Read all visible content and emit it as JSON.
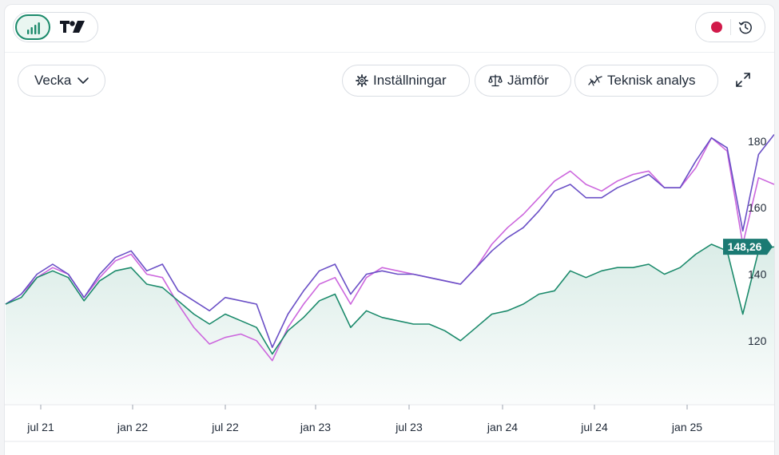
{
  "toolbar": {
    "period_label": "Vecka",
    "settings_label": "Inställningar",
    "compare_label": "Jämför",
    "technical_analysis_label": "Teknisk analys"
  },
  "icons": {
    "chart_type": "bar-chart-icon",
    "brand": "tradingview-logo-icon",
    "market_status": "market-closed-dot-icon",
    "history": "clock-history-icon",
    "period_dropdown": "chevron-down-icon",
    "settings": "gear-icon",
    "compare": "scale-icon",
    "technical_analysis": "trend-line-icon",
    "fullscreen": "expand-icon"
  },
  "colors": {
    "accent": "#1b8a6b",
    "market_status": "#d11a4a",
    "series_main": "#1b8a6b",
    "series_compare_1": "#6a4fc6",
    "series_compare_2": "#cc66dd",
    "price_tag": "#1b7a73"
  },
  "chart_data": {
    "type": "line",
    "x_ticks": [
      "jul 21",
      "jan 22",
      "jul 22",
      "jan 23",
      "jul 23",
      "jan 24",
      "jul 24",
      "jan 25"
    ],
    "y_ticks": [
      120,
      140,
      160,
      180
    ],
    "ylim": [
      101,
      191
    ],
    "last_price_label": "148,26",
    "last_price": 148.26,
    "grid": false,
    "legend": "none",
    "series": [
      {
        "color": "#1b8a6b",
        "area_fill": true,
        "points": [
          [
            "2021-05",
            131
          ],
          [
            "2021-06",
            133
          ],
          [
            "2021-07",
            139
          ],
          [
            "2021-08",
            141
          ],
          [
            "2021-09",
            139
          ],
          [
            "2021-10",
            132
          ],
          [
            "2021-11",
            138
          ],
          [
            "2021-12",
            141
          ],
          [
            "2022-01",
            142
          ],
          [
            "2022-02",
            137
          ],
          [
            "2022-03",
            136
          ],
          [
            "2022-04",
            132
          ],
          [
            "2022-05",
            128
          ],
          [
            "2022-06",
            125
          ],
          [
            "2022-07",
            128
          ],
          [
            "2022-08",
            126
          ],
          [
            "2022-09",
            124
          ],
          [
            "2022-10",
            116
          ],
          [
            "2022-11",
            123
          ],
          [
            "2022-12",
            127
          ],
          [
            "2023-01",
            132
          ],
          [
            "2023-02",
            134
          ],
          [
            "2023-03",
            124
          ],
          [
            "2023-04",
            129
          ],
          [
            "2023-05",
            127
          ],
          [
            "2023-06",
            126
          ],
          [
            "2023-07",
            125
          ],
          [
            "2023-08",
            125
          ],
          [
            "2023-09",
            123
          ],
          [
            "2023-10",
            120
          ],
          [
            "2023-11",
            124
          ],
          [
            "2023-12",
            128
          ],
          [
            "2024-01",
            129
          ],
          [
            "2024-02",
            131
          ],
          [
            "2024-03",
            134
          ],
          [
            "2024-04",
            135
          ],
          [
            "2024-05",
            141
          ],
          [
            "2024-06",
            139
          ],
          [
            "2024-07",
            141
          ],
          [
            "2024-08",
            142
          ],
          [
            "2024-09",
            142
          ],
          [
            "2024-10",
            143
          ],
          [
            "2024-11",
            140
          ],
          [
            "2024-12",
            142
          ],
          [
            "2025-01",
            146
          ],
          [
            "2025-02",
            149
          ],
          [
            "2025-03",
            147
          ],
          [
            "2025-04",
            128
          ],
          [
            "2025-05",
            147
          ],
          [
            "2025-06",
            148.26
          ]
        ]
      },
      {
        "color": "#6a4fc6",
        "area_fill": false,
        "points": [
          [
            "2021-05",
            131
          ],
          [
            "2021-06",
            134
          ],
          [
            "2021-07",
            140
          ],
          [
            "2021-08",
            143
          ],
          [
            "2021-09",
            140
          ],
          [
            "2021-10",
            133
          ],
          [
            "2021-11",
            140
          ],
          [
            "2021-12",
            145
          ],
          [
            "2022-01",
            147
          ],
          [
            "2022-02",
            141
          ],
          [
            "2022-03",
            143
          ],
          [
            "2022-04",
            135
          ],
          [
            "2022-05",
            132
          ],
          [
            "2022-06",
            129
          ],
          [
            "2022-07",
            133
          ],
          [
            "2022-08",
            132
          ],
          [
            "2022-09",
            131
          ],
          [
            "2022-10",
            118
          ],
          [
            "2022-11",
            128
          ],
          [
            "2022-12",
            135
          ],
          [
            "2023-01",
            141
          ],
          [
            "2023-02",
            143
          ],
          [
            "2023-03",
            134
          ],
          [
            "2023-04",
            140
          ],
          [
            "2023-05",
            141
          ],
          [
            "2023-06",
            140
          ],
          [
            "2023-07",
            140
          ],
          [
            "2023-08",
            139
          ],
          [
            "2023-09",
            138
          ],
          [
            "2023-10",
            137
          ],
          [
            "2023-11",
            142
          ],
          [
            "2023-12",
            147
          ],
          [
            "2024-01",
            151
          ],
          [
            "2024-02",
            154
          ],
          [
            "2024-03",
            159
          ],
          [
            "2024-04",
            165
          ],
          [
            "2024-05",
            167
          ],
          [
            "2024-06",
            163
          ],
          [
            "2024-07",
            163
          ],
          [
            "2024-08",
            166
          ],
          [
            "2024-09",
            168
          ],
          [
            "2024-10",
            170
          ],
          [
            "2024-11",
            166
          ],
          [
            "2024-12",
            166
          ],
          [
            "2025-01",
            174
          ],
          [
            "2025-02",
            181
          ],
          [
            "2025-03",
            178
          ],
          [
            "2025-04",
            153
          ],
          [
            "2025-05",
            176
          ],
          [
            "2025-06",
            182
          ]
        ]
      },
      {
        "color": "#cc66dd",
        "area_fill": false,
        "points": [
          [
            "2021-05",
            131
          ],
          [
            "2021-06",
            134
          ],
          [
            "2021-07",
            139
          ],
          [
            "2021-08",
            142
          ],
          [
            "2021-09",
            140
          ],
          [
            "2021-10",
            133
          ],
          [
            "2021-11",
            139
          ],
          [
            "2021-12",
            144
          ],
          [
            "2022-01",
            146
          ],
          [
            "2022-02",
            140
          ],
          [
            "2022-03",
            139
          ],
          [
            "2022-04",
            131
          ],
          [
            "2022-05",
            124
          ],
          [
            "2022-06",
            119
          ],
          [
            "2022-07",
            121
          ],
          [
            "2022-08",
            122
          ],
          [
            "2022-09",
            120
          ],
          [
            "2022-10",
            114
          ],
          [
            "2022-11",
            124
          ],
          [
            "2022-12",
            131
          ],
          [
            "2023-01",
            137
          ],
          [
            "2023-02",
            139
          ],
          [
            "2023-03",
            131
          ],
          [
            "2023-04",
            139
          ],
          [
            "2023-05",
            142
          ],
          [
            "2023-06",
            141
          ],
          [
            "2023-07",
            140
          ],
          [
            "2023-08",
            139
          ],
          [
            "2023-09",
            138
          ],
          [
            "2023-10",
            137
          ],
          [
            "2023-11",
            142
          ],
          [
            "2023-12",
            149
          ],
          [
            "2024-01",
            154
          ],
          [
            "2024-02",
            158
          ],
          [
            "2024-03",
            163
          ],
          [
            "2024-04",
            168
          ],
          [
            "2024-05",
            171
          ],
          [
            "2024-06",
            167
          ],
          [
            "2024-07",
            165
          ],
          [
            "2024-08",
            168
          ],
          [
            "2024-09",
            170
          ],
          [
            "2024-10",
            171
          ],
          [
            "2024-11",
            166
          ],
          [
            "2024-12",
            166
          ],
          [
            "2025-01",
            172
          ],
          [
            "2025-02",
            181
          ],
          [
            "2025-03",
            177
          ],
          [
            "2025-04",
            149
          ],
          [
            "2025-05",
            169
          ],
          [
            "2025-06",
            167
          ]
        ]
      }
    ]
  }
}
